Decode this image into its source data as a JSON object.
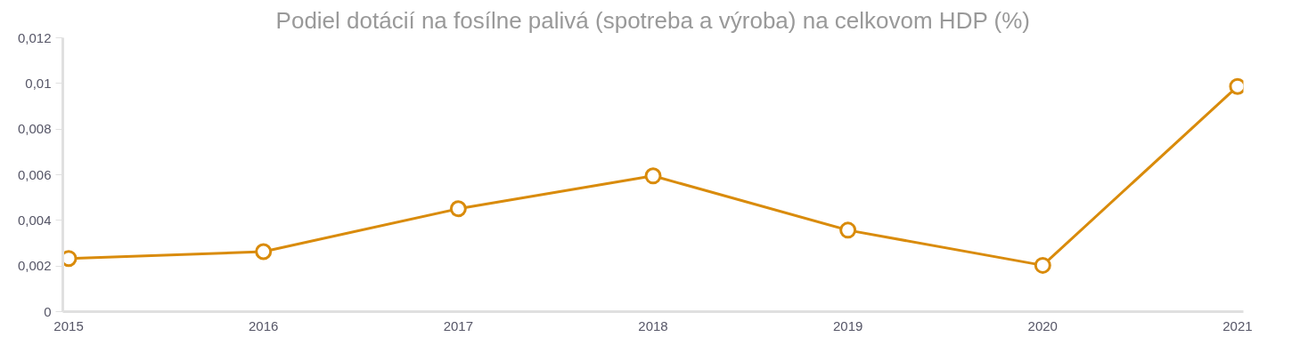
{
  "chart_data": {
    "type": "line",
    "title": "Podiel dotácií na fosílne palivá (spotreba a výroba) na celkovom HDP (%)",
    "categories": [
      "2015",
      "2016",
      "2017",
      "2018",
      "2019",
      "2020",
      "2021"
    ],
    "series": [
      {
        "color": "#d98b0b",
        "values": [
          0.00233,
          0.00263,
          0.00451,
          0.00595,
          0.00357,
          0.00203,
          0.00987
        ]
      }
    ],
    "ylim": [
      0,
      0.012
    ],
    "yticks": [
      {
        "value": 0,
        "label": "0"
      },
      {
        "value": 0.002,
        "label": "0,002"
      },
      {
        "value": 0.004,
        "label": "0,004"
      },
      {
        "value": 0.006,
        "label": "0,006"
      },
      {
        "value": 0.008,
        "label": "0,008"
      },
      {
        "value": 0.01,
        "label": "0,01"
      },
      {
        "value": 0.012,
        "label": "0,012"
      }
    ],
    "grid": false,
    "marker": "circle",
    "line_style": "solid"
  }
}
